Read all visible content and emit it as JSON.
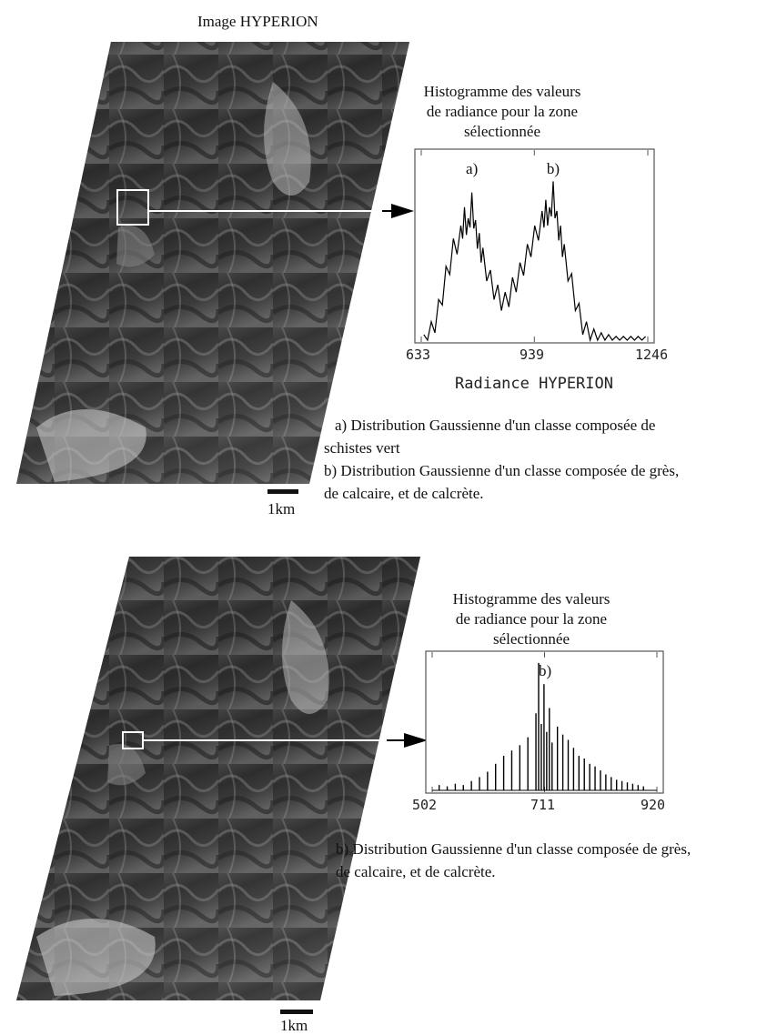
{
  "top": {
    "image_title": "Image HYPERION",
    "scale_label": "1km",
    "histogram": {
      "title_lines": [
        "Histogramme des valeurs",
        "de radiance pour la zone",
        "sélectionnée"
      ],
      "peak_labels": [
        "a)",
        "b)"
      ],
      "x_ticks": [
        "633",
        "939",
        "1246"
      ],
      "xlabel": "Radiance HYPERION"
    },
    "legend_lines": [
      "a) Distribution Gaussienne d'un classe composée de",
      "schistes vert",
      "b) Distribution Gaussienne d'un classe composée de grès,",
      "de calcaire, et de calcrète."
    ]
  },
  "bottom": {
    "scale_label": "1km",
    "histogram": {
      "title_lines": [
        "Histogramme des valeurs",
        "de radiance pour la zone",
        "sélectionnée"
      ],
      "peak_labels": [
        "b)"
      ],
      "x_ticks": [
        "502",
        "711",
        "920"
      ]
    },
    "legend_lines": [
      "b) Distribution Gaussienne d'un classe composée de grès,",
      "de calcaire, et de calcrète."
    ]
  },
  "chart_data": [
    {
      "type": "area",
      "title": "Histogramme des valeurs de radiance pour la zone sélectionnée",
      "xlabel": "Radiance HYPERION",
      "ylabel": "",
      "xlim": [
        633,
        1246
      ],
      "x_ticks": [
        633,
        939,
        1246
      ],
      "annotations": [
        {
          "text": "a)",
          "x": 770
        },
        {
          "text": "b)",
          "x": 990
        }
      ],
      "series": [
        {
          "x": [
            640,
            660,
            680,
            700,
            720,
            740,
            750,
            760,
            770,
            780,
            790,
            800,
            820,
            840,
            860,
            880,
            900,
            920,
            940,
            960,
            970,
            980,
            990,
            1000,
            1010,
            1020,
            1040,
            1060,
            1080,
            1100,
            1120,
            1140,
            1160,
            1180,
            1200,
            1220,
            1240
          ],
          "values": [
            0.03,
            0.1,
            0.22,
            0.4,
            0.55,
            0.62,
            0.72,
            0.66,
            0.8,
            0.65,
            0.58,
            0.5,
            0.38,
            0.3,
            0.26,
            0.34,
            0.42,
            0.52,
            0.62,
            0.7,
            0.76,
            0.72,
            0.86,
            0.7,
            0.62,
            0.52,
            0.36,
            0.2,
            0.1,
            0.06,
            0.04,
            0.03,
            0.02,
            0.02,
            0.02,
            0.02,
            0.02
          ]
        }
      ]
    },
    {
      "type": "bar",
      "title": "Histogramme des valeurs de radiance pour la zone sélectionnée",
      "xlabel": "",
      "ylabel": "",
      "xlim": [
        502,
        920
      ],
      "x_ticks": [
        502,
        711,
        920
      ],
      "annotations": [
        {
          "text": "b)",
          "x": 712
        }
      ],
      "series": [
        {
          "x": [
            515,
            530,
            545,
            560,
            575,
            590,
            605,
            620,
            635,
            650,
            665,
            680,
            695,
            700,
            705,
            710,
            715,
            720,
            725,
            735,
            745,
            755,
            765,
            775,
            785,
            795,
            805,
            815,
            825,
            835,
            845,
            855,
            865,
            875,
            885,
            895
          ],
          "values": [
            0.04,
            0.03,
            0.05,
            0.04,
            0.07,
            0.1,
            0.14,
            0.2,
            0.26,
            0.3,
            0.34,
            0.4,
            0.58,
            0.96,
            0.5,
            0.8,
            0.44,
            0.62,
            0.36,
            0.48,
            0.42,
            0.38,
            0.32,
            0.26,
            0.24,
            0.2,
            0.18,
            0.15,
            0.12,
            0.1,
            0.08,
            0.07,
            0.06,
            0.05,
            0.04,
            0.03
          ]
        }
      ]
    }
  ]
}
